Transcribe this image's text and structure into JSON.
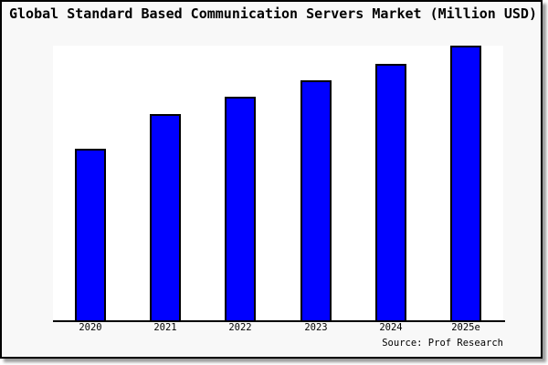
{
  "chart_data": {
    "type": "bar",
    "title": "Global Standard Based Communication Servers Market (Million USD)",
    "categories": [
      "2020",
      "2021",
      "2022",
      "2023",
      "2024",
      "2025e"
    ],
    "values": [
      62.5,
      75,
      81.5,
      87.5,
      93.5,
      100
    ],
    "value_note": "y-axis has no ticks or labels; values are relative estimates read from bar heights with 2025e = 100",
    "xlabel": "",
    "ylabel": "",
    "ylim": [
      0,
      100
    ],
    "grid": false,
    "legend": false,
    "y_axis_visible": false,
    "source": "Source: Prof Research",
    "colors": {
      "bar_fill": "#0000ff",
      "bar_border": "#000000",
      "figure_background": "#f8f8f8",
      "plot_background": "#ffffff",
      "axis_line": "#000000",
      "frame_border": "#000000",
      "text": "#000000"
    }
  }
}
